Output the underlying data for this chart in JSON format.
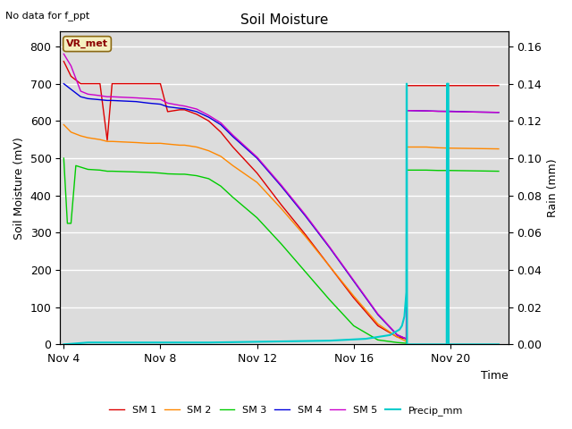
{
  "title": "Soil Moisture",
  "top_left_text": "No data for f_ppt",
  "annotation_box": "VR_met",
  "xlabel": "Time",
  "ylabel_left": "Soil Moisture (mV)",
  "ylabel_right": "Rain (mm)",
  "ylim_left": [
    0,
    840
  ],
  "ylim_right": [
    0,
    0.168
  ],
  "yticks_left": [
    0,
    100,
    200,
    300,
    400,
    500,
    600,
    700,
    800
  ],
  "yticks_right": [
    0.0,
    0.02,
    0.04,
    0.06,
    0.08,
    0.1,
    0.12,
    0.14,
    0.16
  ],
  "bg_color": "#dcdcdc",
  "fig_bg_color": "#ffffff",
  "grid_color": "#ffffff",
  "xlim": [
    3.85,
    22.4
  ],
  "lines": {
    "SM1": {
      "color": "#dd0000",
      "label": "SM 1",
      "points": [
        [
          4.0,
          760
        ],
        [
          4.3,
          720
        ],
        [
          4.7,
          700
        ],
        [
          5.0,
          700
        ],
        [
          5.5,
          700
        ],
        [
          5.8,
          548
        ],
        [
          6.0,
          700
        ],
        [
          6.5,
          700
        ],
        [
          7.0,
          700
        ],
        [
          7.5,
          700
        ],
        [
          8.0,
          700
        ],
        [
          8.3,
          625
        ],
        [
          8.8,
          630
        ],
        [
          9.0,
          630
        ],
        [
          9.5,
          618
        ],
        [
          10.0,
          600
        ],
        [
          10.5,
          570
        ],
        [
          11.0,
          530
        ],
        [
          12.0,
          460
        ],
        [
          13.0,
          375
        ],
        [
          14.0,
          295
        ],
        [
          15.0,
          210
        ],
        [
          16.0,
          125
        ],
        [
          17.0,
          50
        ],
        [
          17.8,
          20
        ],
        [
          18.18,
          15
        ],
        [
          18.19,
          690
        ],
        [
          18.2,
          695
        ],
        [
          19.0,
          695
        ],
        [
          19.5,
          695
        ],
        [
          20.0,
          695
        ],
        [
          21.0,
          695
        ],
        [
          22.0,
          695
        ]
      ]
    },
    "SM2": {
      "color": "#ff8800",
      "label": "SM 2",
      "points": [
        [
          4.0,
          590
        ],
        [
          4.3,
          570
        ],
        [
          4.7,
          560
        ],
        [
          5.0,
          555
        ],
        [
          5.5,
          550
        ],
        [
          5.8,
          545
        ],
        [
          6.0,
          545
        ],
        [
          7.0,
          542
        ],
        [
          7.5,
          540
        ],
        [
          8.0,
          540
        ],
        [
          8.3,
          538
        ],
        [
          8.8,
          535
        ],
        [
          9.0,
          535
        ],
        [
          9.5,
          530
        ],
        [
          10.0,
          520
        ],
        [
          10.5,
          505
        ],
        [
          11.0,
          480
        ],
        [
          12.0,
          435
        ],
        [
          13.0,
          365
        ],
        [
          14.0,
          290
        ],
        [
          15.0,
          210
        ],
        [
          16.0,
          130
        ],
        [
          17.0,
          55
        ],
        [
          17.8,
          20
        ],
        [
          18.18,
          8
        ],
        [
          18.19,
          530
        ],
        [
          18.2,
          530
        ],
        [
          19.0,
          530
        ],
        [
          19.5,
          528
        ],
        [
          20.0,
          527
        ],
        [
          21.0,
          526
        ],
        [
          22.0,
          525
        ]
      ]
    },
    "SM3": {
      "color": "#00cc00",
      "label": "SM 3",
      "points": [
        [
          4.0,
          500
        ],
        [
          4.15,
          325
        ],
        [
          4.3,
          325
        ],
        [
          4.5,
          480
        ],
        [
          5.0,
          470
        ],
        [
          5.5,
          468
        ],
        [
          5.8,
          465
        ],
        [
          6.0,
          465
        ],
        [
          7.0,
          463
        ],
        [
          7.5,
          462
        ],
        [
          8.0,
          460
        ],
        [
          8.3,
          458
        ],
        [
          8.8,
          457
        ],
        [
          9.0,
          457
        ],
        [
          9.5,
          453
        ],
        [
          10.0,
          445
        ],
        [
          10.5,
          425
        ],
        [
          11.0,
          395
        ],
        [
          12.0,
          340
        ],
        [
          13.0,
          270
        ],
        [
          14.0,
          195
        ],
        [
          15.0,
          120
        ],
        [
          16.0,
          50
        ],
        [
          17.0,
          12
        ],
        [
          17.8,
          5
        ],
        [
          18.18,
          3
        ],
        [
          18.19,
          468
        ],
        [
          18.2,
          468
        ],
        [
          19.0,
          468
        ],
        [
          19.5,
          467
        ],
        [
          20.0,
          467
        ],
        [
          21.0,
          466
        ],
        [
          22.0,
          465
        ]
      ]
    },
    "SM4": {
      "color": "#0000dd",
      "label": "SM 4",
      "points": [
        [
          4.0,
          700
        ],
        [
          4.3,
          685
        ],
        [
          4.7,
          665
        ],
        [
          5.0,
          660
        ],
        [
          5.5,
          657
        ],
        [
          5.8,
          655
        ],
        [
          6.0,
          655
        ],
        [
          7.0,
          652
        ],
        [
          7.5,
          648
        ],
        [
          8.0,
          645
        ],
        [
          8.3,
          638
        ],
        [
          8.8,
          634
        ],
        [
          9.0,
          633
        ],
        [
          9.5,
          625
        ],
        [
          10.0,
          610
        ],
        [
          10.5,
          590
        ],
        [
          11.0,
          558
        ],
        [
          12.0,
          500
        ],
        [
          13.0,
          425
        ],
        [
          14.0,
          345
        ],
        [
          15.0,
          260
        ],
        [
          16.0,
          170
        ],
        [
          17.0,
          80
        ],
        [
          17.8,
          25
        ],
        [
          18.18,
          15
        ],
        [
          18.19,
          628
        ],
        [
          18.2,
          628
        ],
        [
          19.0,
          627
        ],
        [
          19.5,
          626
        ],
        [
          20.0,
          626
        ],
        [
          21.0,
          624
        ],
        [
          22.0,
          623
        ]
      ]
    },
    "SM5": {
      "color": "#cc00cc",
      "label": "SM 5",
      "points": [
        [
          4.0,
          780
        ],
        [
          4.3,
          748
        ],
        [
          4.7,
          680
        ],
        [
          5.0,
          672
        ],
        [
          5.5,
          668
        ],
        [
          5.8,
          665
        ],
        [
          6.0,
          665
        ],
        [
          7.0,
          662
        ],
        [
          7.5,
          660
        ],
        [
          8.0,
          658
        ],
        [
          8.3,
          648
        ],
        [
          8.8,
          642
        ],
        [
          9.0,
          640
        ],
        [
          9.5,
          632
        ],
        [
          10.0,
          615
        ],
        [
          10.5,
          595
        ],
        [
          11.0,
          562
        ],
        [
          12.0,
          503
        ],
        [
          13.0,
          428
        ],
        [
          14.0,
          348
        ],
        [
          15.0,
          262
        ],
        [
          16.0,
          172
        ],
        [
          17.0,
          82
        ],
        [
          17.8,
          26
        ],
        [
          18.18,
          15
        ],
        [
          18.19,
          628
        ],
        [
          18.2,
          628
        ],
        [
          19.0,
          627
        ],
        [
          19.5,
          626
        ],
        [
          20.0,
          625
        ],
        [
          21.0,
          624
        ],
        [
          22.0,
          623
        ]
      ]
    },
    "Precip": {
      "color": "#00cccc",
      "label": "Precip_mm",
      "points": [
        [
          4.0,
          0.0
        ],
        [
          5.0,
          0.001
        ],
        [
          10.0,
          0.001
        ],
        [
          15.0,
          0.002
        ],
        [
          16.5,
          0.003
        ],
        [
          17.5,
          0.005
        ],
        [
          17.9,
          0.008
        ],
        [
          18.0,
          0.01
        ],
        [
          18.1,
          0.015
        ],
        [
          18.18,
          0.028
        ],
        [
          18.19,
          0.14
        ],
        [
          18.2,
          0.14
        ],
        [
          18.21,
          0.0
        ],
        [
          19.85,
          0.0
        ],
        [
          19.86,
          0.14
        ],
        [
          19.92,
          0.14
        ],
        [
          19.93,
          0.0
        ],
        [
          22.0,
          0.0
        ]
      ]
    }
  },
  "xtick_positions": [
    4,
    8,
    12,
    16,
    20
  ],
  "xtick_labels": [
    "Nov 4",
    "Nov 8",
    "Nov 12",
    "Nov 16",
    "Nov 20"
  ],
  "legend_items": [
    {
      "label": "SM 1",
      "color": "#dd0000"
    },
    {
      "label": "SM 2",
      "color": "#ff8800"
    },
    {
      "label": "SM 3",
      "color": "#00cc00"
    },
    {
      "label": "SM 4",
      "color": "#0000dd"
    },
    {
      "label": "SM 5",
      "color": "#cc00cc"
    },
    {
      "label": "Precip_mm",
      "color": "#00cccc"
    }
  ]
}
